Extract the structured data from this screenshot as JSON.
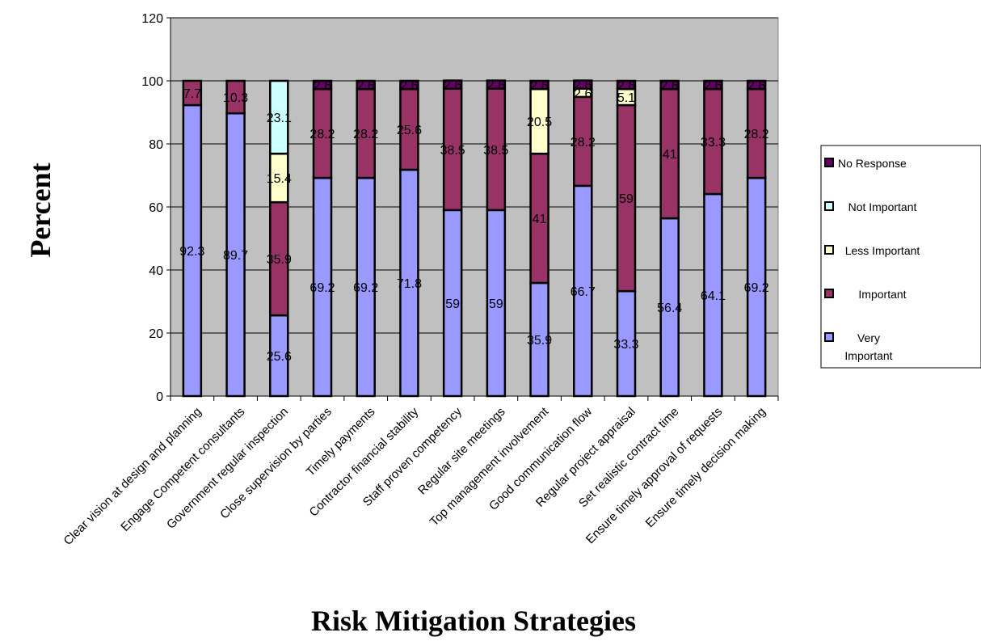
{
  "chart_data": {
    "type": "bar",
    "stacked": true,
    "title": "",
    "xlabel": "Risk Mitigation Strategies",
    "ylabel": "Percent",
    "ylim": [
      0,
      120
    ],
    "yticks": [
      0,
      20,
      40,
      60,
      80,
      100,
      120
    ],
    "grid": "horizontal",
    "legend_position": "right",
    "categories": [
      "Clear vision at design and planning",
      "Engage Competent consultants",
      "Government regular inspection",
      "Close supervision by parties",
      "Timely payments",
      "Contractor financial stability",
      "Staff proven competency",
      "Regular site meetings",
      "Top management involvement",
      "Good communication flow",
      "Regular project appraisal",
      "Set realistic contract time",
      "Ensure timely approval of requests",
      "Ensure timely decision making"
    ],
    "series": [
      {
        "name": "Very Important",
        "legend_lines": [
          "Very",
          "Important"
        ],
        "color": "#9999ff",
        "values": [
          92.3,
          89.7,
          25.6,
          69.2,
          69.2,
          71.8,
          59,
          59,
          35.9,
          66.7,
          33.3,
          56.4,
          64.1,
          69.2
        ],
        "labels": [
          "92.3",
          "89.7",
          "25.6",
          "69.2",
          "69.2",
          "71.8",
          "59",
          "59",
          "35.9",
          "66.7",
          "33.3",
          "56.4",
          "64.1",
          "69.2"
        ]
      },
      {
        "name": "Important",
        "legend_lines": [
          "Important"
        ],
        "color": "#993366",
        "values": [
          7.7,
          10.3,
          35.9,
          28.2,
          28.2,
          25.6,
          38.5,
          38.5,
          41,
          28.2,
          59,
          41,
          33.3,
          28.2
        ],
        "labels": [
          "7.7",
          "10.3",
          "35.9",
          "28.2",
          "28.2",
          "25.6",
          "38.5",
          "38.5",
          "41",
          "28.2",
          "59",
          "41",
          "33.3",
          "28.2"
        ]
      },
      {
        "name": "Less Important",
        "legend_lines": [
          "Less Important"
        ],
        "color": "#ffffcc",
        "values": [
          0,
          0,
          15.4,
          0,
          0,
          0,
          0,
          0,
          20.5,
          2.6,
          5.1,
          0,
          0,
          0
        ],
        "labels": [
          "",
          "",
          "15.4",
          "",
          "",
          "",
          "",
          "",
          "20.5",
          "2.6",
          "5.1",
          "",
          "",
          ""
        ]
      },
      {
        "name": "Not Important",
        "legend_lines": [
          "Not    Important"
        ],
        "color": "#ccffff",
        "values": [
          0,
          0,
          23.1,
          0,
          0,
          0,
          0,
          0,
          0,
          0,
          0,
          0,
          0,
          0
        ],
        "labels": [
          "",
          "",
          "23.1",
          "",
          "",
          "",
          "",
          "",
          "",
          "",
          "",
          "",
          "",
          ""
        ]
      },
      {
        "name": "No Response",
        "legend_lines": [
          "No Response"
        ],
        "color": "#660066",
        "values": [
          0,
          0,
          0,
          2.6,
          2.6,
          2.6,
          2.6,
          2.6,
          2.6,
          2.6,
          2.6,
          2.6,
          2.6,
          2.6
        ],
        "labels": [
          "",
          "",
          "",
          "2.6",
          "2.6",
          "2.6",
          "2.6",
          "2.6",
          "2.6",
          "2.6",
          "2.6",
          "2.6",
          "2.6",
          "2.6"
        ]
      }
    ],
    "colors": {
      "plot_background": "#c0c0c0",
      "bar_outline": "#000000"
    }
  }
}
